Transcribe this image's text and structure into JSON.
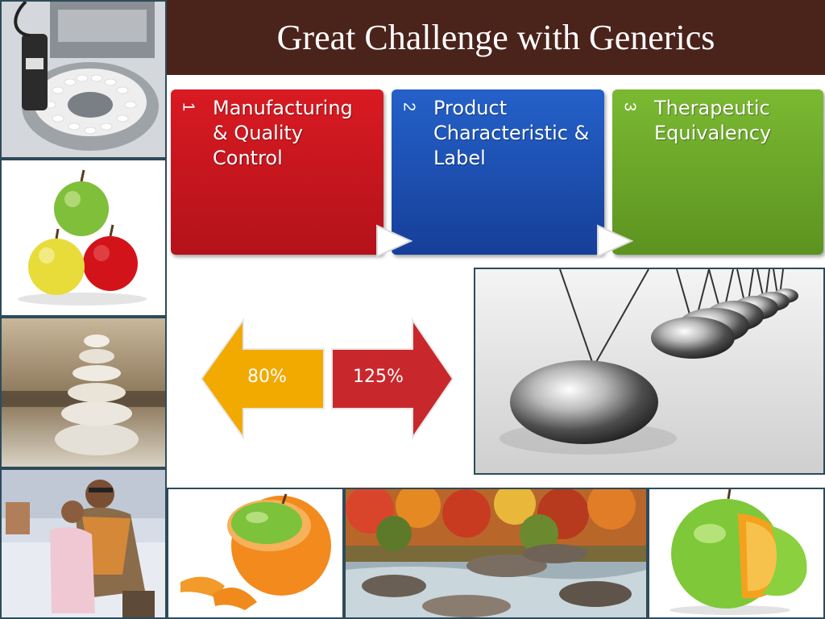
{
  "slide": {
    "title": "Great Challenge with Generics"
  },
  "steps": [
    {
      "number": "1",
      "label_lines": [
        "Manufacturing",
        "& Quality",
        "Control"
      ],
      "color": "#c8181e"
    },
    {
      "number": "2",
      "label_lines": [
        "Product",
        "Characteristic &",
        "Label"
      ],
      "color": "#1b4fb2"
    },
    {
      "number": "3",
      "label_lines": [
        "Therapeutic",
        "Equivalency"
      ],
      "color": "#6aa326"
    }
  ],
  "range_arrows": {
    "low": {
      "label": "80%",
      "color": "#f2a900"
    },
    "high": {
      "label": "125%",
      "color": "#c8282c"
    }
  },
  "images": {
    "pill_machine": "pill-sorting-machine",
    "apples": "three-apples",
    "stones": "stacked-stones",
    "father_child": "father-and-child",
    "newtons_cradle": "newtons-cradle",
    "orange_apple": "apple-in-orange-peel",
    "river": "autumn-river",
    "apple_orange": "apple-with-orange-inside"
  }
}
